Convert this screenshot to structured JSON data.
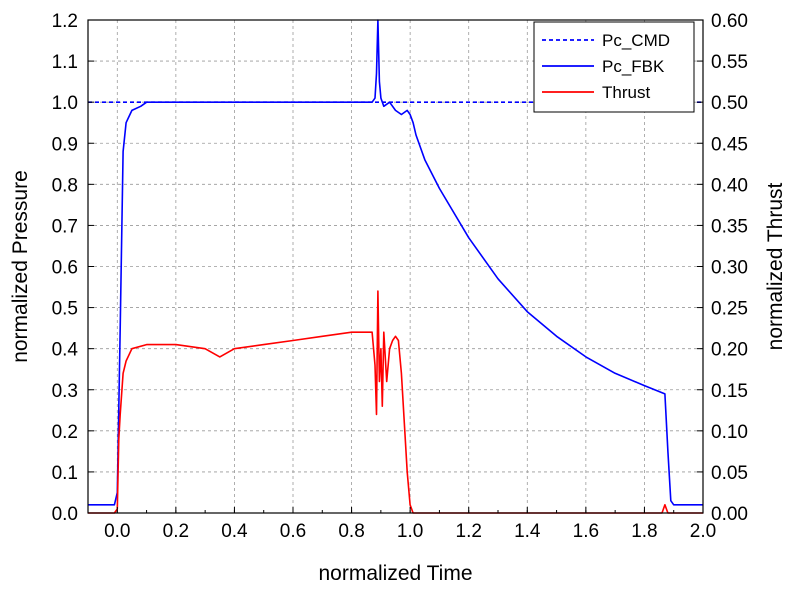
{
  "chart_data": {
    "type": "line",
    "title": "",
    "xlabel": "normalized Time",
    "ylabel": "normalized Pressure",
    "y2label": "normalized Thrust",
    "xlim": [
      -0.1,
      2.0
    ],
    "ylim": [
      0.0,
      1.2
    ],
    "y2lim": [
      0.0,
      0.6
    ],
    "x_ticks": [
      "0.0",
      "0.2",
      "0.4",
      "0.6",
      "0.8",
      "1.0",
      "1.2",
      "1.4",
      "1.6",
      "1.8",
      "2.0"
    ],
    "y_ticks": [
      "0.0",
      "0.1",
      "0.2",
      "0.3",
      "0.4",
      "0.5",
      "0.6",
      "0.7",
      "0.8",
      "0.9",
      "1.0",
      "1.1",
      "1.2"
    ],
    "y2_ticks": [
      "0.00",
      "0.05",
      "0.10",
      "0.15",
      "0.20",
      "0.25",
      "0.30",
      "0.35",
      "0.40",
      "0.45",
      "0.50",
      "0.55",
      "0.60"
    ],
    "grid": true,
    "legend_position": "top-right",
    "series": [
      {
        "name": "Pc_CMD",
        "axis": "left",
        "style": "dashed",
        "color": "#0000ff",
        "x": [
          -0.1,
          2.0
        ],
        "y": [
          1.0,
          1.0
        ]
      },
      {
        "name": "Pc_FBK",
        "axis": "left",
        "style": "solid",
        "color": "#0000ff",
        "x": [
          -0.1,
          -0.02,
          -0.01,
          0.0,
          0.01,
          0.02,
          0.03,
          0.05,
          0.08,
          0.1,
          0.15,
          0.2,
          0.3,
          0.4,
          0.5,
          0.6,
          0.7,
          0.8,
          0.85,
          0.87,
          0.88,
          0.885,
          0.89,
          0.895,
          0.9,
          0.91,
          0.93,
          0.95,
          0.97,
          0.99,
          1.0,
          1.01,
          1.02,
          1.05,
          1.1,
          1.2,
          1.3,
          1.4,
          1.5,
          1.6,
          1.7,
          1.8,
          1.87,
          1.88,
          1.89,
          1.9,
          2.0
        ],
        "y": [
          0.02,
          0.02,
          0.02,
          0.05,
          0.45,
          0.88,
          0.95,
          0.98,
          0.99,
          1.0,
          1.0,
          1.0,
          1.0,
          1.0,
          1.0,
          1.0,
          1.0,
          1.0,
          1.0,
          1.0,
          1.01,
          1.07,
          1.2,
          1.05,
          1.01,
          0.99,
          1.0,
          0.98,
          0.97,
          0.98,
          0.97,
          0.95,
          0.92,
          0.86,
          0.79,
          0.67,
          0.57,
          0.49,
          0.43,
          0.38,
          0.34,
          0.31,
          0.29,
          0.15,
          0.03,
          0.02,
          0.02
        ]
      },
      {
        "name": "Thrust",
        "axis": "right",
        "style": "solid",
        "color": "#ff0000",
        "x": [
          -0.1,
          -0.01,
          0.0,
          0.005,
          0.01,
          0.02,
          0.03,
          0.05,
          0.1,
          0.2,
          0.3,
          0.35,
          0.4,
          0.5,
          0.6,
          0.7,
          0.8,
          0.85,
          0.87,
          0.88,
          0.885,
          0.89,
          0.895,
          0.9,
          0.905,
          0.91,
          0.92,
          0.93,
          0.94,
          0.95,
          0.96,
          0.97,
          0.98,
          0.99,
          1.0,
          1.01,
          1.02,
          1.1,
          1.2,
          1.4,
          1.6,
          1.8,
          1.86,
          1.87,
          1.88,
          1.9,
          2.0
        ],
        "y": [
          0.0,
          0.0,
          0.005,
          0.09,
          0.12,
          0.17,
          0.185,
          0.2,
          0.205,
          0.205,
          0.2,
          0.19,
          0.2,
          0.205,
          0.21,
          0.215,
          0.22,
          0.22,
          0.22,
          0.18,
          0.12,
          0.27,
          0.16,
          0.2,
          0.13,
          0.22,
          0.16,
          0.2,
          0.21,
          0.215,
          0.21,
          0.17,
          0.11,
          0.05,
          0.01,
          0.0,
          0.0,
          0.0,
          0.0,
          0.0,
          0.0,
          0.0,
          0.0,
          0.01,
          0.0,
          0.0,
          0.0
        ]
      }
    ]
  }
}
